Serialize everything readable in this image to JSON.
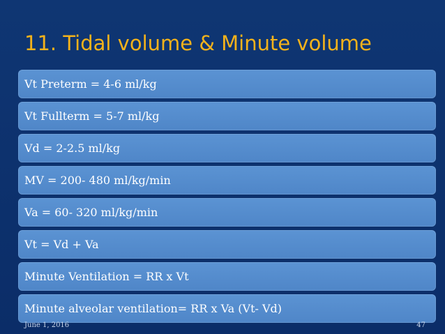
{
  "slide": {
    "title": "11. Tidal volume & Minute volume",
    "items": [
      "Vt Preterm = 4-6 ml/kg",
      "Vt Fullterm = 5-7 ml/kg",
      "Vd = 2-2.5 ml/kg",
      "MV = 200- 480 ml/kg/min",
      "Va = 60- 320 ml/kg/min",
      "Vt = Vd + Va",
      "Minute Ventilation = RR x Vt",
      "Minute alveolar ventilation= RR x Va (Vt- Vd)"
    ],
    "footer": {
      "date": "June 1, 2016",
      "page_number": "47"
    }
  },
  "colors": {
    "background": "#0c2f6b",
    "title": "#f3b21b",
    "box": "#5b93d3",
    "box_text": "#ffffff"
  }
}
